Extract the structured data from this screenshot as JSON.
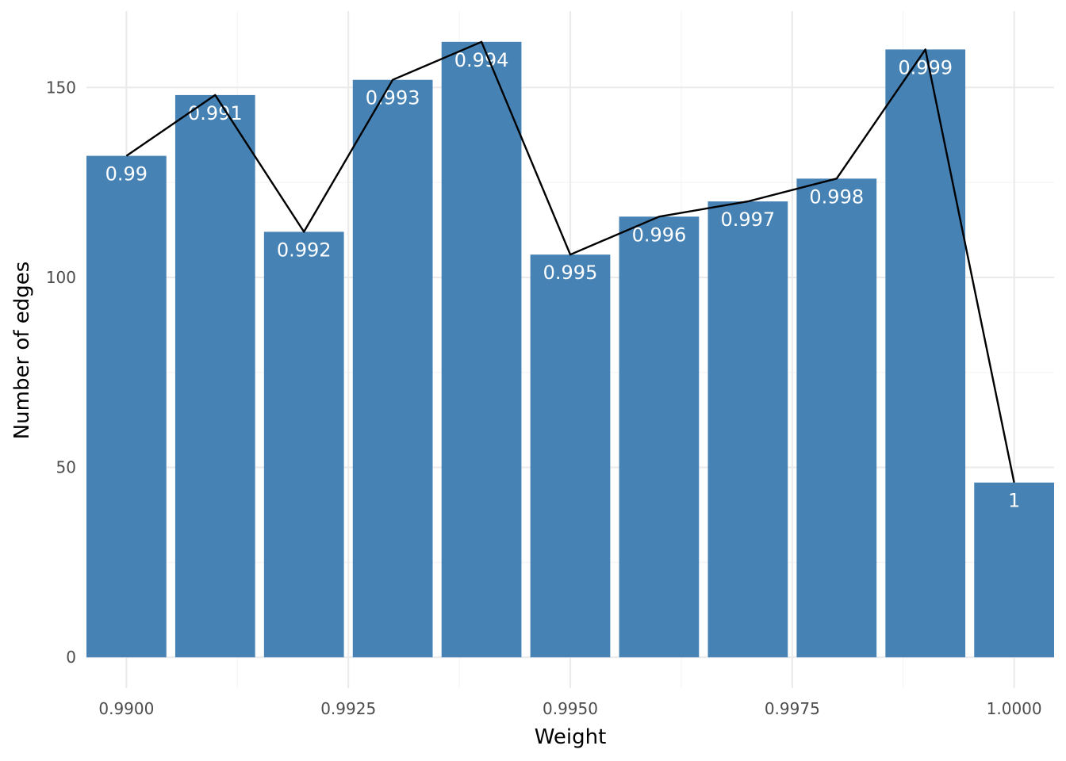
{
  "chart_data": {
    "type": "bar",
    "title": "",
    "xlabel": "Weight",
    "ylabel": "Number of edges",
    "x": [
      0.99,
      0.991,
      0.992,
      0.993,
      0.994,
      0.995,
      0.996,
      0.997,
      0.998,
      0.999,
      1.0
    ],
    "values": [
      132,
      148,
      112,
      152,
      162,
      106,
      116,
      120,
      126,
      160,
      46
    ],
    "bar_labels": [
      "0.99",
      "0.991",
      "0.992",
      "0.993",
      "0.994",
      "0.995",
      "0.996",
      "0.997",
      "0.998",
      "0.999",
      "1"
    ],
    "overlay": "line",
    "xlim": [
      0.98955,
      1.00045
    ],
    "ylim": [
      -8.1,
      170.1
    ],
    "x_ticks": [
      0.99,
      0.9925,
      0.995,
      0.9975,
      1.0
    ],
    "x_tick_labels": [
      "0.9900",
      "0.9925",
      "0.9950",
      "0.9975",
      "1.0000"
    ],
    "y_ticks": [
      0,
      50,
      100,
      150
    ],
    "y_tick_labels": [
      "0",
      "50",
      "100",
      "150"
    ],
    "grid": true,
    "legend": "none",
    "colors": {
      "bar": "#4682B4",
      "line": "#000000",
      "grid_major": "#EBEBEB",
      "grid_minor": "#F4F4F4",
      "label": "#FFFFFF"
    }
  }
}
